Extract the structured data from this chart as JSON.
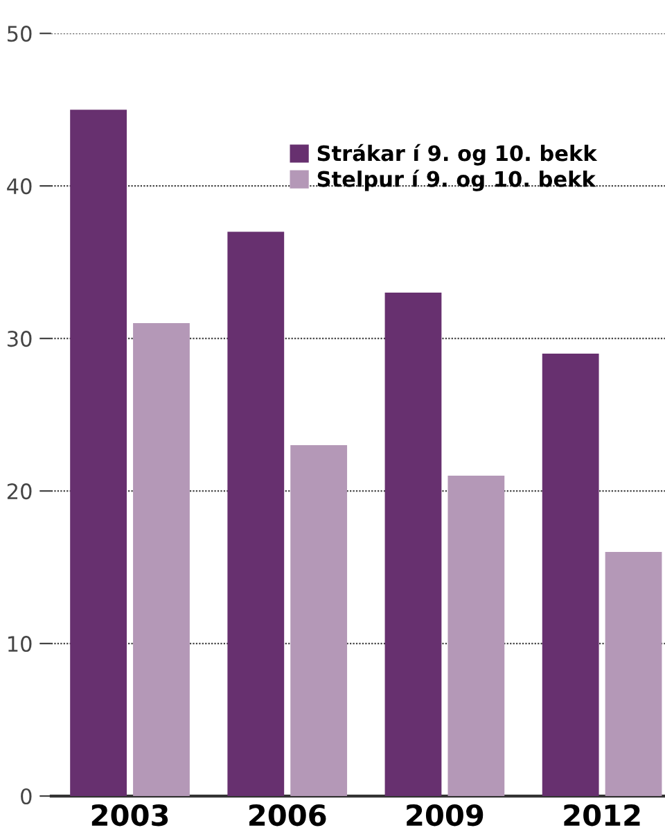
{
  "chart_data": {
    "type": "bar",
    "categories": [
      "2003",
      "2006",
      "2009",
      "2012"
    ],
    "series": [
      {
        "name": "Strákar í 9. og 10. bekk",
        "color": "#67306f",
        "values": [
          45,
          37,
          33,
          29
        ]
      },
      {
        "name": "Stelpur í 9. og 10. bekk",
        "color": "#b498b7",
        "values": [
          31,
          23,
          21,
          16
        ]
      }
    ],
    "ylim": [
      0,
      50
    ],
    "yticks": [
      0,
      10,
      20,
      30,
      40,
      50
    ],
    "grid": "y",
    "legend": "top right"
  }
}
